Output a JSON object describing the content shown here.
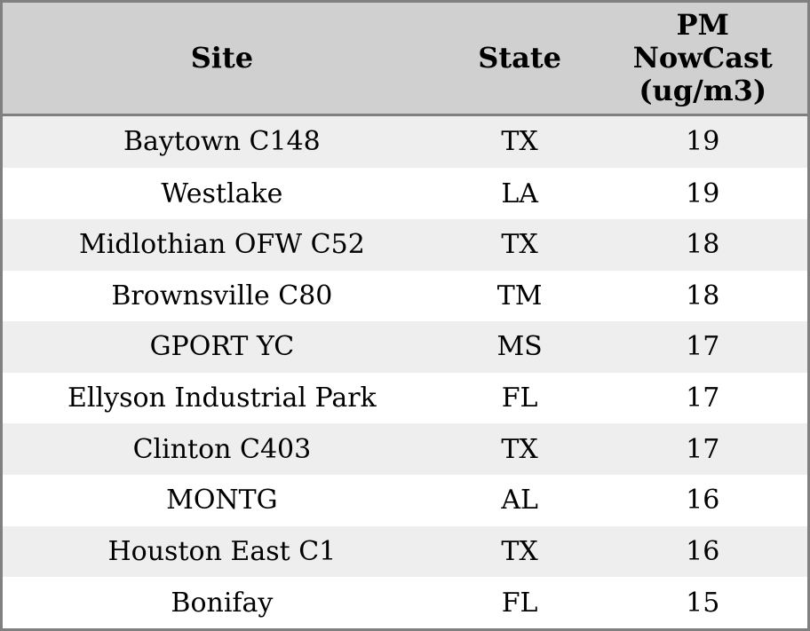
{
  "chart_data": {
    "type": "table",
    "columns": [
      "Site",
      "State",
      "PM NowCast (ug/m3)"
    ],
    "rows": [
      [
        "Baytown C148",
        "TX",
        "19"
      ],
      [
        "Westlake",
        "LA",
        "19"
      ],
      [
        "Midlothian OFW C52",
        "TX",
        "18"
      ],
      [
        "Brownsville C80",
        "TM",
        "18"
      ],
      [
        "GPORT YC",
        "MS",
        "17"
      ],
      [
        "Ellyson Industrial Park",
        "FL",
        "17"
      ],
      [
        "Clinton C403",
        "TX",
        "17"
      ],
      [
        "MONTG",
        "AL",
        "16"
      ],
      [
        "Houston East C1",
        "TX",
        "16"
      ],
      [
        "Bonifay",
        "FL",
        "15"
      ]
    ]
  },
  "colors": {
    "border": "#808080",
    "header_bg": "#d0d0d0",
    "row_alt_bg": "#eeeeee",
    "row_bg": "#ffffff",
    "text": "#000000"
  }
}
